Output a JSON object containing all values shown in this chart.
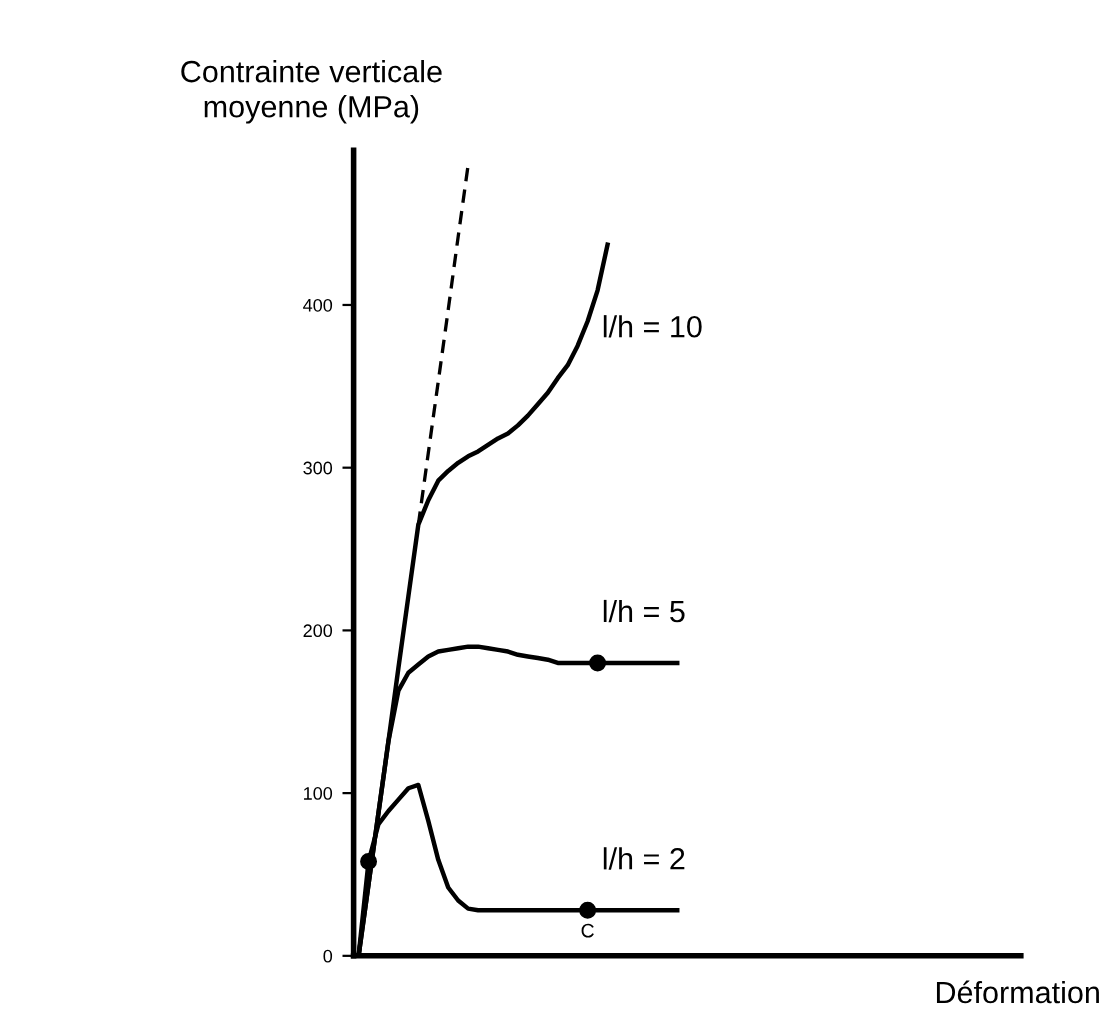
{
  "chart_data": {
    "type": "line",
    "xlabel": "Déformation",
    "ylabel": "Contrainte verticale\nmoyenne (MPa)",
    "categories": [
      null,
      null,
      null,
      null,
      null,
      null,
      null,
      null,
      null,
      null,
      null,
      null,
      null,
      null,
      null,
      null,
      null,
      null,
      null,
      null,
      null,
      null,
      null,
      null,
      null,
      null,
      null,
      null,
      null,
      null,
      null,
      null,
      null,
      null,
      null,
      null,
      null,
      null,
      null,
      null,
      null,
      null,
      null,
      null,
      null,
      null,
      null,
      null,
      null,
      null,
      null,
      null,
      null,
      null,
      null,
      null,
      null,
      null,
      null,
      null,
      null,
      null,
      null,
      null,
      null,
      null,
      null
    ],
    "series": [
      {
        "color": "#000000",
        "line_style": "dashed",
        "values": [
          null,
          null,
          null,
          null,
          null,
          null,
          265,
          309,
          353,
          397,
          442,
          486,
          null,
          null,
          null,
          null,
          null,
          null,
          null,
          null,
          null,
          null,
          null,
          null,
          null,
          null,
          null,
          null,
          null,
          null,
          null,
          null,
          null,
          null,
          null,
          null,
          null,
          null,
          null,
          null,
          null,
          null,
          null,
          null,
          null,
          null,
          null,
          null,
          null,
          null,
          null,
          null,
          null,
          null,
          null,
          null,
          null,
          null,
          null,
          null,
          null,
          null,
          null,
          null,
          null,
          null,
          null
        ]
      },
      {
        "name": "l/h = 10",
        "color": "#000000",
        "line_style": "solid",
        "values": [
          0,
          44,
          88,
          132,
          177,
          221,
          265,
          280,
          292,
          298,
          303,
          307,
          310,
          314,
          318,
          321,
          326,
          332,
          339,
          346,
          355,
          363,
          375,
          390,
          409,
          437,
          null,
          null,
          null,
          null,
          null,
          null,
          null,
          null,
          null,
          null,
          null,
          null,
          null,
          null,
          null,
          null,
          null,
          null,
          null,
          null,
          null,
          null,
          null,
          null,
          null,
          null,
          null,
          null,
          null,
          null,
          null,
          null,
          null,
          null,
          null,
          null,
          null,
          null,
          null,
          null,
          null
        ]
      },
      {
        "name": "l/h = 5",
        "color": "#000000",
        "line_style": "solid",
        "values": [
          0,
          44,
          88,
          132,
          163,
          174,
          179,
          184,
          187,
          188,
          189,
          190,
          190,
          189,
          188,
          187,
          185,
          184,
          183,
          182,
          180,
          180,
          180,
          180,
          180,
          180,
          180,
          180,
          180,
          180,
          180,
          180,
          180,
          null,
          null,
          null,
          null,
          null,
          null,
          null,
          null,
          null,
          null,
          null,
          null,
          null,
          null,
          null,
          null,
          null,
          null,
          null,
          null,
          null,
          null,
          null,
          null,
          null,
          null,
          null,
          null,
          null,
          null,
          null,
          null,
          null,
          null
        ]
      },
      {
        "name": "l/h = 2",
        "color": "#000000",
        "line_style": "solid",
        "values": [
          0,
          58,
          81,
          89,
          96,
          103,
          105,
          83,
          59,
          42,
          34,
          29,
          28,
          28,
          28,
          28,
          28,
          28,
          28,
          28,
          28,
          28,
          28,
          28,
          28,
          28,
          28,
          28,
          28,
          28,
          28,
          28,
          28,
          null,
          null,
          null,
          null,
          null,
          null,
          null,
          null,
          null,
          null,
          null,
          null,
          null,
          null,
          null,
          null,
          null,
          null,
          null,
          null,
          null,
          null,
          null,
          null,
          null,
          null,
          null,
          null,
          null,
          null,
          null,
          null,
          null,
          null
        ]
      },
      {
        "type": "scatter",
        "color": "#000000",
        "marker": "circle",
        "values": [
          null,
          58,
          null,
          null,
          null,
          null,
          null,
          null,
          null,
          null,
          null,
          null,
          null,
          null,
          null,
          null,
          null,
          null,
          null,
          null,
          null,
          null,
          null,
          28,
          180,
          null,
          null,
          null,
          null,
          null,
          null,
          null,
          null,
          null,
          null,
          null,
          null,
          null,
          null,
          null,
          null,
          null,
          null,
          null,
          null,
          null,
          null,
          null,
          null,
          null,
          null,
          null,
          null,
          null,
          null,
          null,
          null,
          null,
          null,
          null,
          null,
          null,
          null,
          null,
          null,
          null,
          null
        ]
      }
    ],
    "annotations": [
      "C"
    ],
    "ylim": [
      0,
      495
    ],
    "yticks": [
      0,
      100,
      200,
      300,
      400
    ],
    "grid": false,
    "legend": false
  }
}
